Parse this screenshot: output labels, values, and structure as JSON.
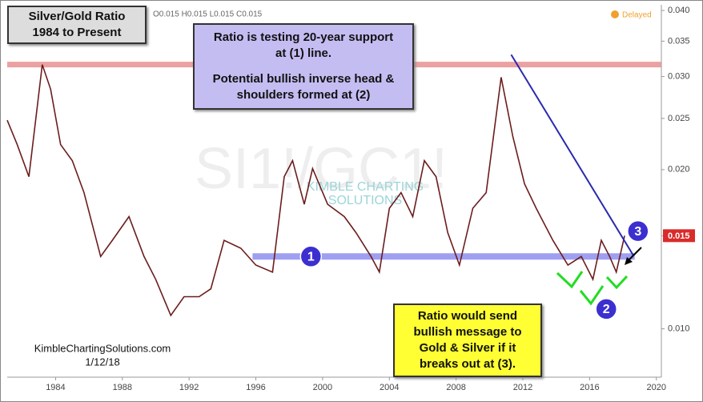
{
  "chart_data": {
    "type": "line",
    "header": "O0.015 H0.015 L0.015 C0.015",
    "status": "Delayed",
    "watermark": "SI1!/GC1!",
    "logo": [
      "KIMBLE CHARTING",
      "SOLUTIONS"
    ],
    "title_box": [
      "Silver/Gold Ratio",
      "1984 to Present"
    ],
    "note_box": [
      [
        "Ratio is testing 20-year support",
        "at (1) line."
      ],
      [
        "Potential bullish inverse head &",
        "shoulders formed at (2)"
      ]
    ],
    "callout_box": [
      "Ratio would send",
      "bullish message to",
      "Gold & Silver if it",
      "breaks out at (3)."
    ],
    "credit": [
      "KimbleChartingSolutions.com",
      "1/12/18"
    ],
    "markers": [
      {
        "label": "1",
        "x": 1999.3,
        "y": 0.0137
      },
      {
        "label": "2",
        "x": 2017.0,
        "y": 0.0109
      },
      {
        "label": "3",
        "x": 2018.9,
        "y": 0.0153
      }
    ],
    "last_price": 0.015,
    "series": [
      {
        "name": "SI1!/GC1!",
        "color": "#6b1d1d",
        "x": [
          1981.1,
          1981.7,
          1982.4,
          1983.2,
          1983.7,
          1984.3,
          1985.0,
          1985.7,
          1986.7,
          1987.4,
          1988.4,
          1989.3,
          1990.0,
          1990.9,
          1991.7,
          1992.6,
          1993.3,
          1994.1,
          1995.1,
          1996.0,
          1997.0,
          1997.7,
          1998.2,
          1998.9,
          1999.4,
          2000.3,
          2001.3,
          2002.0,
          2002.9,
          2003.4,
          2004.0,
          2004.7,
          2005.4,
          2006.1,
          2006.8,
          2007.5,
          2008.2,
          2009.0,
          2009.8,
          2010.7,
          2011.4,
          2012.1,
          2012.8,
          2013.8,
          2014.7,
          2015.5,
          2016.2,
          2016.7,
          2017.2,
          2017.6,
          2018.1
        ],
        "values": [
          0.0248,
          0.0223,
          0.0194,
          0.0316,
          0.0284,
          0.0223,
          0.0208,
          0.0181,
          0.0137,
          0.0147,
          0.0163,
          0.0137,
          0.0124,
          0.0106,
          0.0115,
          0.0115,
          0.0119,
          0.0147,
          0.0142,
          0.0132,
          0.0128,
          0.0194,
          0.0208,
          0.0172,
          0.0201,
          0.0172,
          0.0163,
          0.0152,
          0.0137,
          0.0128,
          0.0169,
          0.0181,
          0.0163,
          0.0208,
          0.0194,
          0.0152,
          0.0132,
          0.0169,
          0.0181,
          0.0299,
          0.0231,
          0.0188,
          0.0169,
          0.0147,
          0.0132,
          0.0137,
          0.0124,
          0.0147,
          0.0137,
          0.0128,
          0.015
        ]
      }
    ],
    "resistance": {
      "value": 0.0316,
      "color": "#e88a8a"
    },
    "support": {
      "value": 0.0137,
      "x": [
        1995.8,
        2018.7
      ],
      "color": "#8f8ff0"
    },
    "trendline": {
      "x": [
        2011.3,
        2018.6
      ],
      "y": [
        0.033,
        0.0138
      ],
      "color": "#2a2ab0"
    },
    "log_y": true,
    "xlim": [
      1981.1,
      2020.3
    ],
    "xticks": [
      1984,
      1988,
      1992,
      1996,
      2000,
      2004,
      2008,
      2012,
      2016,
      2020
    ],
    "ylim": [
      0.0081,
      0.041
    ],
    "yticks": [
      {
        "value": 0.01,
        "label": "0.010"
      },
      0.015,
      {
        "value": 0.02,
        "label": "0.020"
      },
      0.025,
      {
        "value": 0.03,
        "label": "0.030"
      },
      0.035,
      {
        "value": 0.04,
        "label": "0.040"
      }
    ]
  }
}
